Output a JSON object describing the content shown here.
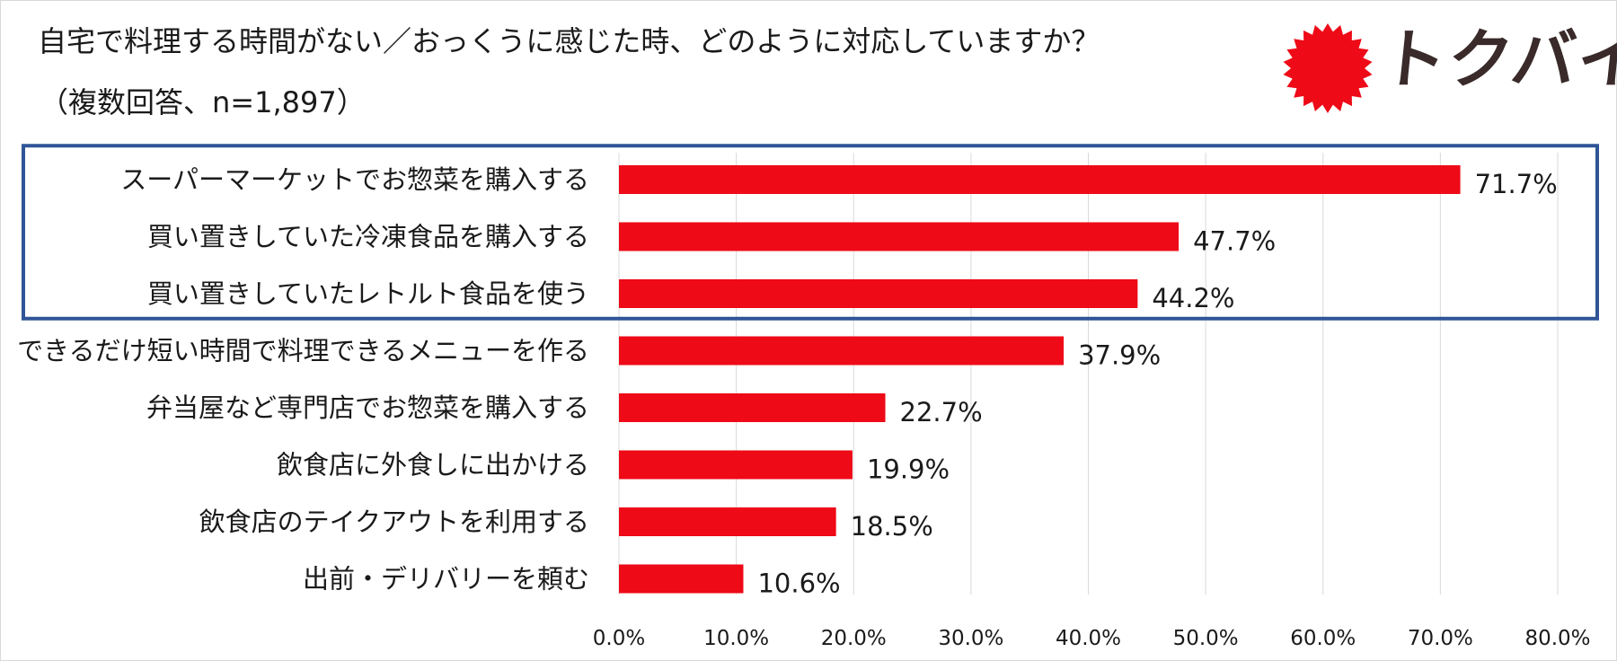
{
  "title_line1": "自宅で料理する時間がない／おっくうに感じた時、どのように対応していますか？",
  "title_line2": "（複数回答、n=1,897）",
  "logo": {
    "text": "トクバイ",
    "icon": "red-sun-badge"
  },
  "colors": {
    "bar": "#EE0A17",
    "highlight_box": "#2F5597",
    "grid": "#D9D9D9"
  },
  "chart_data": {
    "type": "bar",
    "orientation": "horizontal",
    "categories": [
      "スーパーマーケットでお惣菜を購入する",
      "買い置きしていた冷凍食品を購入する",
      "買い置きしていたレトルト食品を使う",
      "できるだけ短い時間で料理できるメニューを作る",
      "弁当屋など専門店でお惣菜を購入する",
      "飲食店に外食しに出かける",
      "飲食店のテイクアウトを利用する",
      "出前・デリバリーを頼む"
    ],
    "values": [
      71.7,
      47.7,
      44.2,
      37.9,
      22.7,
      19.9,
      18.5,
      10.6
    ],
    "value_labels": [
      "71.7%",
      "47.7%",
      "44.2%",
      "37.9%",
      "22.7%",
      "19.9%",
      "18.5%",
      "10.6%"
    ],
    "xlim": [
      0,
      80
    ],
    "ticks": [
      0,
      10,
      20,
      30,
      40,
      50,
      60,
      70,
      80
    ],
    "tick_labels": [
      "0.0%",
      "10.0%",
      "20.0%",
      "30.0%",
      "40.0%",
      "50.0%",
      "60.0%",
      "70.0%",
      "80.0%"
    ],
    "grid": "vertical",
    "highlighted_categories": [
      0,
      1,
      2
    ]
  }
}
